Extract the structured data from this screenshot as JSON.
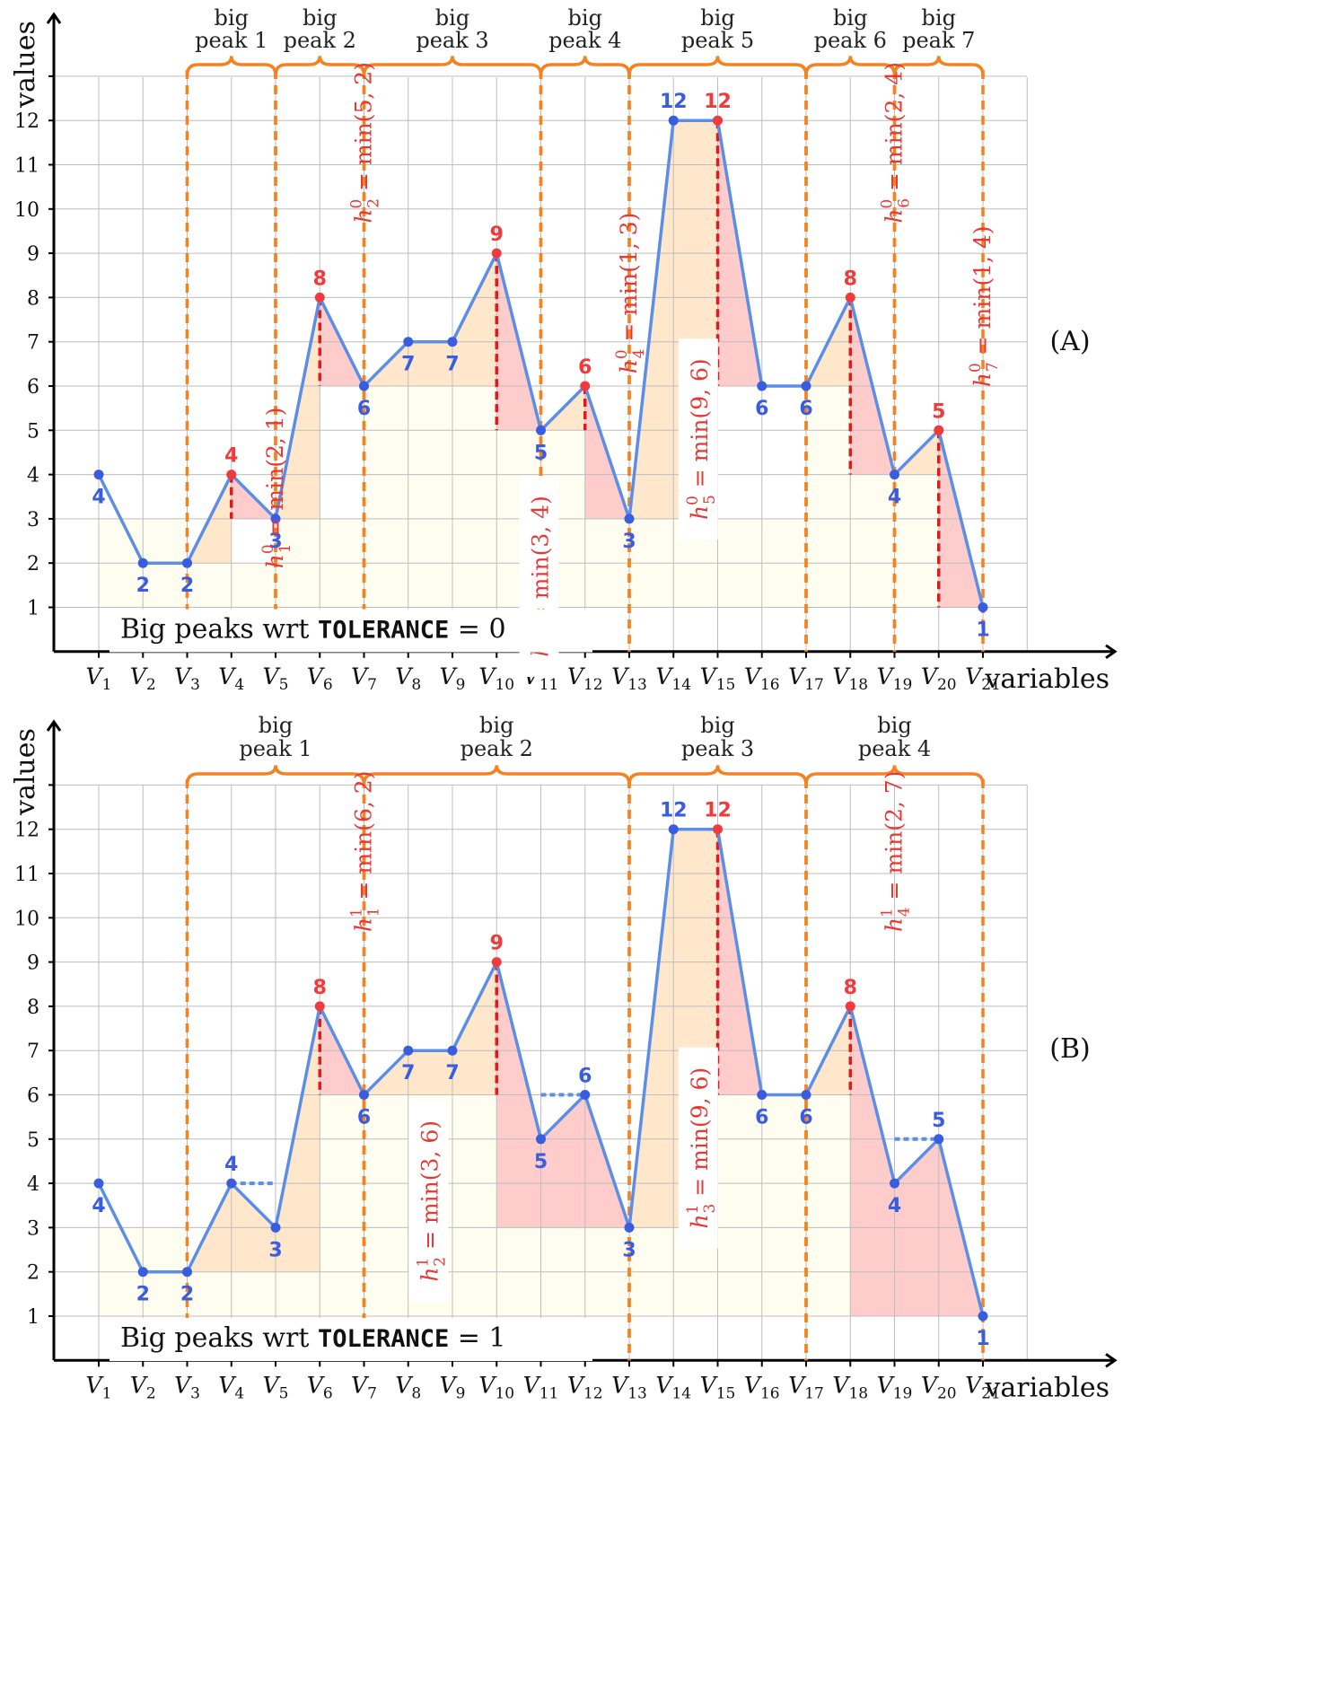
{
  "colors": {
    "line": "#5b8ee6",
    "point_blue": "#3a5de0",
    "point_red": "#ef3b3b",
    "orange": "#f5821f",
    "fill_yellow": "#fffdf0",
    "fill_peach": "#ffe7cc",
    "fill_pink": "#ffcccc",
    "grid": "#bdbdbd"
  },
  "chart_data": [
    {
      "type": "line",
      "panel_label": "(A)",
      "xlabel": "variables",
      "ylabel": "values",
      "x": [
        "V1",
        "V2",
        "V3",
        "V4",
        "V5",
        "V6",
        "V7",
        "V8",
        "V9",
        "V10",
        "V11",
        "V12",
        "V13",
        "V14",
        "V15",
        "V16",
        "V17",
        "V18",
        "V19",
        "V20",
        "V21"
      ],
      "y_ticks": [
        1,
        2,
        3,
        4,
        5,
        6,
        7,
        8,
        9,
        10,
        11,
        12
      ],
      "values": [
        4,
        2,
        2,
        4,
        3,
        8,
        6,
        7,
        7,
        9,
        5,
        6,
        3,
        12,
        12,
        6,
        6,
        8,
        4,
        5,
        1
      ],
      "label_positions": [
        "below",
        "below",
        "below",
        "above",
        "below",
        "above",
        "below",
        "below",
        "below",
        "above",
        "below",
        "above",
        "below",
        "above",
        "above",
        "below",
        "below",
        "above",
        "below",
        "above",
        "below"
      ],
      "red_points": [
        4,
        6,
        10,
        12,
        15,
        18,
        20
      ],
      "bottom_text": {
        "prefix": "Big peaks wrt ",
        "keyword": "TOLERANCE",
        "suffix": " = 0"
      },
      "big_peaks": [
        {
          "label_top": "big",
          "label_bottom": "peak 1",
          "start": 3,
          "end": 5
        },
        {
          "label_top": "big",
          "label_bottom": "peak 2",
          "start": 5,
          "end": 7
        },
        {
          "label_top": "big",
          "label_bottom": "peak 3",
          "start": 7,
          "end": 11
        },
        {
          "label_top": "big",
          "label_bottom": "peak 4",
          "start": 11,
          "end": 13
        },
        {
          "label_top": "big",
          "label_bottom": "peak 5",
          "start": 13,
          "end": 17
        },
        {
          "label_top": "big",
          "label_bottom": "peak 6",
          "start": 17,
          "end": 19
        },
        {
          "label_top": "big",
          "label_bottom": "peak 7",
          "start": 19,
          "end": 21
        }
      ],
      "heights": [
        {
          "index": "1",
          "sup": "0",
          "expr": " = min(2, 1)",
          "peak_x": 4,
          "peak_y": 4,
          "base": 3,
          "text_x": 5.0,
          "text_y": 3.7,
          "box": false
        },
        {
          "index": "2",
          "sup": "0",
          "expr": " = min(5, 2)",
          "peak_x": 6,
          "peak_y": 8,
          "base": 6,
          "text_x": 7.0,
          "text_y": 11.5,
          "box": false
        },
        {
          "index": "3",
          "sup": "0",
          "expr": " = min(3, 4)",
          "peak_x": 10,
          "peak_y": 9,
          "base": 5,
          "text_x": 11.0,
          "text_y": 1.7,
          "box": true
        },
        {
          "index": "4",
          "sup": "0",
          "expr": " = min(1, 3)",
          "peak_x": 12,
          "peak_y": 6,
          "base": 5,
          "text_x": 13.0,
          "text_y": 8.1,
          "box": false
        },
        {
          "index": "5",
          "sup": "0",
          "expr": " = min(9, 6)",
          "peak_x": 15,
          "peak_y": 12,
          "base": 6,
          "text_x": 14.6,
          "text_y": 4.8,
          "box": true
        },
        {
          "index": "6",
          "sup": "0",
          "expr": " = min(2, 4)",
          "peak_x": 18,
          "peak_y": 8,
          "base": 4,
          "text_x": 19.0,
          "text_y": 11.5,
          "box": false
        },
        {
          "index": "7",
          "sup": "0",
          "expr": " = min(1, 4)",
          "peak_x": 20,
          "peak_y": 5,
          "base": 1,
          "text_x": 21.0,
          "text_y": 7.8,
          "box": false
        }
      ],
      "fills": [
        {
          "color": "yellow",
          "points": [
            [
              1,
              1
            ],
            [
              1,
              3
            ],
            [
              3,
              3
            ],
            [
              3,
              1
            ]
          ]
        },
        {
          "color": "yellow",
          "points": [
            [
              3,
              1
            ],
            [
              3,
              2
            ],
            [
              5,
              2
            ],
            [
              5,
              3
            ],
            [
              6,
              3
            ],
            [
              6,
              1
            ]
          ]
        },
        {
          "color": "yellow",
          "points": [
            [
              6,
              1
            ],
            [
              6,
              3
            ],
            [
              7,
              3
            ],
            [
              7,
              6
            ],
            [
              11,
              6
            ],
            [
              11,
              5
            ],
            [
              12,
              5
            ],
            [
              12,
              3
            ],
            [
              17,
              3
            ],
            [
              17,
              6
            ],
            [
              18,
              6
            ],
            [
              18,
              4
            ],
            [
              20,
              4
            ],
            [
              20,
              1
            ]
          ]
        },
        {
          "color": "peach",
          "points": [
            [
              3,
              2
            ],
            [
              4,
              4
            ],
            [
              4,
              2
            ]
          ]
        },
        {
          "color": "pink",
          "points": [
            [
              4,
              4
            ],
            [
              5,
              3
            ],
            [
              4,
              3
            ]
          ]
        },
        {
          "color": "peach",
          "points": [
            [
              5,
              3
            ],
            [
              6,
              8
            ],
            [
              6,
              3
            ]
          ]
        },
        {
          "color": "pink",
          "points": [
            [
              6,
              8
            ],
            [
              7,
              6
            ],
            [
              6,
              6
            ]
          ]
        },
        {
          "color": "peach",
          "points": [
            [
              7,
              6
            ],
            [
              8,
              7
            ],
            [
              9,
              7
            ],
            [
              10,
              9
            ],
            [
              10,
              6
            ]
          ]
        },
        {
          "color": "pink",
          "points": [
            [
              10,
              9
            ],
            [
              11,
              5
            ],
            [
              10,
              5
            ]
          ]
        },
        {
          "color": "peach",
          "points": [
            [
              11,
              5
            ],
            [
              12,
              6
            ],
            [
              12,
              5
            ]
          ]
        },
        {
          "color": "pink",
          "points": [
            [
              12,
              6
            ],
            [
              13,
              3
            ],
            [
              12,
              3
            ]
          ]
        },
        {
          "color": "peach",
          "points": [
            [
              13,
              3
            ],
            [
              14,
              12
            ],
            [
              15,
              12
            ],
            [
              15,
              3
            ]
          ]
        },
        {
          "color": "pink",
          "points": [
            [
              15,
              12
            ],
            [
              16,
              6
            ],
            [
              15,
              6
            ]
          ]
        },
        {
          "color": "peach",
          "points": [
            [
              17,
              6
            ],
            [
              18,
              8
            ],
            [
              18,
              6
            ]
          ]
        },
        {
          "color": "pink",
          "points": [
            [
              18,
              8
            ],
            [
              19,
              4
            ],
            [
              18,
              4
            ]
          ]
        },
        {
          "color": "peach",
          "points": [
            [
              19,
              4
            ],
            [
              20,
              5
            ],
            [
              20,
              4
            ]
          ]
        },
        {
          "color": "pink",
          "points": [
            [
              20,
              5
            ],
            [
              21,
              1
            ],
            [
              20,
              1
            ]
          ]
        }
      ],
      "blue_dashes": []
    },
    {
      "type": "line",
      "panel_label": "(B)",
      "xlabel": "variables",
      "ylabel": "values",
      "x": [
        "V1",
        "V2",
        "V3",
        "V4",
        "V5",
        "V6",
        "V7",
        "V8",
        "V9",
        "V10",
        "V11",
        "V12",
        "V13",
        "V14",
        "V15",
        "V16",
        "V17",
        "V18",
        "V19",
        "V20",
        "V21"
      ],
      "y_ticks": [
        1,
        2,
        3,
        4,
        5,
        6,
        7,
        8,
        9,
        10,
        11,
        12
      ],
      "values": [
        4,
        2,
        2,
        4,
        3,
        8,
        6,
        7,
        7,
        9,
        5,
        6,
        3,
        12,
        12,
        6,
        6,
        8,
        4,
        5,
        1
      ],
      "label_positions": [
        "below",
        "below",
        "below",
        "above",
        "below",
        "above",
        "below",
        "below",
        "below",
        "above",
        "below",
        "above",
        "below",
        "above",
        "above",
        "below",
        "below",
        "above",
        "below",
        "above",
        "below"
      ],
      "red_points": [
        6,
        10,
        15,
        18
      ],
      "bottom_text": {
        "prefix": "Big peaks wrt ",
        "keyword": "TOLERANCE",
        "suffix": " = 1"
      },
      "big_peaks": [
        {
          "label_top": "big",
          "label_bottom": "peak 1",
          "start": 3,
          "end": 7
        },
        {
          "label_top": "big",
          "label_bottom": "peak 2",
          "start": 7,
          "end": 13
        },
        {
          "label_top": "big",
          "label_bottom": "peak 3",
          "start": 13,
          "end": 17
        },
        {
          "label_top": "big",
          "label_bottom": "peak 4",
          "start": 17,
          "end": 21
        }
      ],
      "heights": [
        {
          "index": "1",
          "sup": "1",
          "expr": " = min(6, 2)",
          "peak_x": 6,
          "peak_y": 8,
          "base": 6,
          "text_x": 7.0,
          "text_y": 11.5,
          "box": false
        },
        {
          "index": "2",
          "sup": "1",
          "expr": " = min(3, 6)",
          "peak_x": 10,
          "peak_y": 9,
          "base": 6,
          "text_x": 8.5,
          "text_y": 3.6,
          "box": true
        },
        {
          "index": "3",
          "sup": "1",
          "expr": " = min(9, 6)",
          "peak_x": 15,
          "peak_y": 12,
          "base": 6,
          "text_x": 14.6,
          "text_y": 4.8,
          "box": true
        },
        {
          "index": "4",
          "sup": "1",
          "expr": " = min(2, 7)",
          "peak_x": 18,
          "peak_y": 8,
          "base": 6,
          "text_x": 19.0,
          "text_y": 11.5,
          "box": false
        }
      ],
      "fills": [
        {
          "color": "yellow",
          "points": [
            [
              1,
              1
            ],
            [
              1,
              3
            ],
            [
              3,
              3
            ],
            [
              3,
              1
            ]
          ]
        },
        {
          "color": "yellow",
          "points": [
            [
              3,
              1
            ],
            [
              3,
              2
            ],
            [
              6,
              2
            ],
            [
              6,
              6
            ],
            [
              10,
              6
            ],
            [
              10,
              3
            ],
            [
              13,
              3
            ],
            [
              13,
              3
            ],
            [
              15,
              3
            ],
            [
              15,
              6
            ],
            [
              18,
              6
            ],
            [
              18,
              1
            ]
          ]
        },
        {
          "color": "peach",
          "points": [
            [
              3,
              2
            ],
            [
              4,
              4
            ],
            [
              5,
              3
            ],
            [
              6,
              8
            ],
            [
              6,
              2
            ]
          ]
        },
        {
          "color": "pink",
          "points": [
            [
              6,
              8
            ],
            [
              7,
              6
            ],
            [
              6,
              6
            ]
          ]
        },
        {
          "color": "peach",
          "points": [
            [
              7,
              6
            ],
            [
              8,
              7
            ],
            [
              9,
              7
            ],
            [
              10,
              9
            ],
            [
              10,
              6
            ]
          ]
        },
        {
          "color": "pink",
          "points": [
            [
              10,
              9
            ],
            [
              11,
              5
            ],
            [
              12,
              6
            ],
            [
              13,
              3
            ],
            [
              10,
              3
            ]
          ]
        },
        {
          "color": "peach",
          "points": [
            [
              13,
              3
            ],
            [
              14,
              12
            ],
            [
              15,
              12
            ],
            [
              15,
              3
            ]
          ]
        },
        {
          "color": "pink",
          "points": [
            [
              15,
              12
            ],
            [
              16,
              6
            ],
            [
              15,
              6
            ]
          ]
        },
        {
          "color": "peach",
          "points": [
            [
              17,
              6
            ],
            [
              18,
              8
            ],
            [
              18,
              6
            ]
          ]
        },
        {
          "color": "pink",
          "points": [
            [
              18,
              8
            ],
            [
              19,
              4
            ],
            [
              20,
              5
            ],
            [
              21,
              1
            ],
            [
              18,
              1
            ]
          ]
        }
      ],
      "blue_dashes": [
        {
          "x1": 4,
          "x2": 5,
          "y": 4
        },
        {
          "x1": 11,
          "x2": 12,
          "y": 6
        },
        {
          "x1": 19,
          "x2": 20,
          "y": 5
        }
      ]
    }
  ]
}
